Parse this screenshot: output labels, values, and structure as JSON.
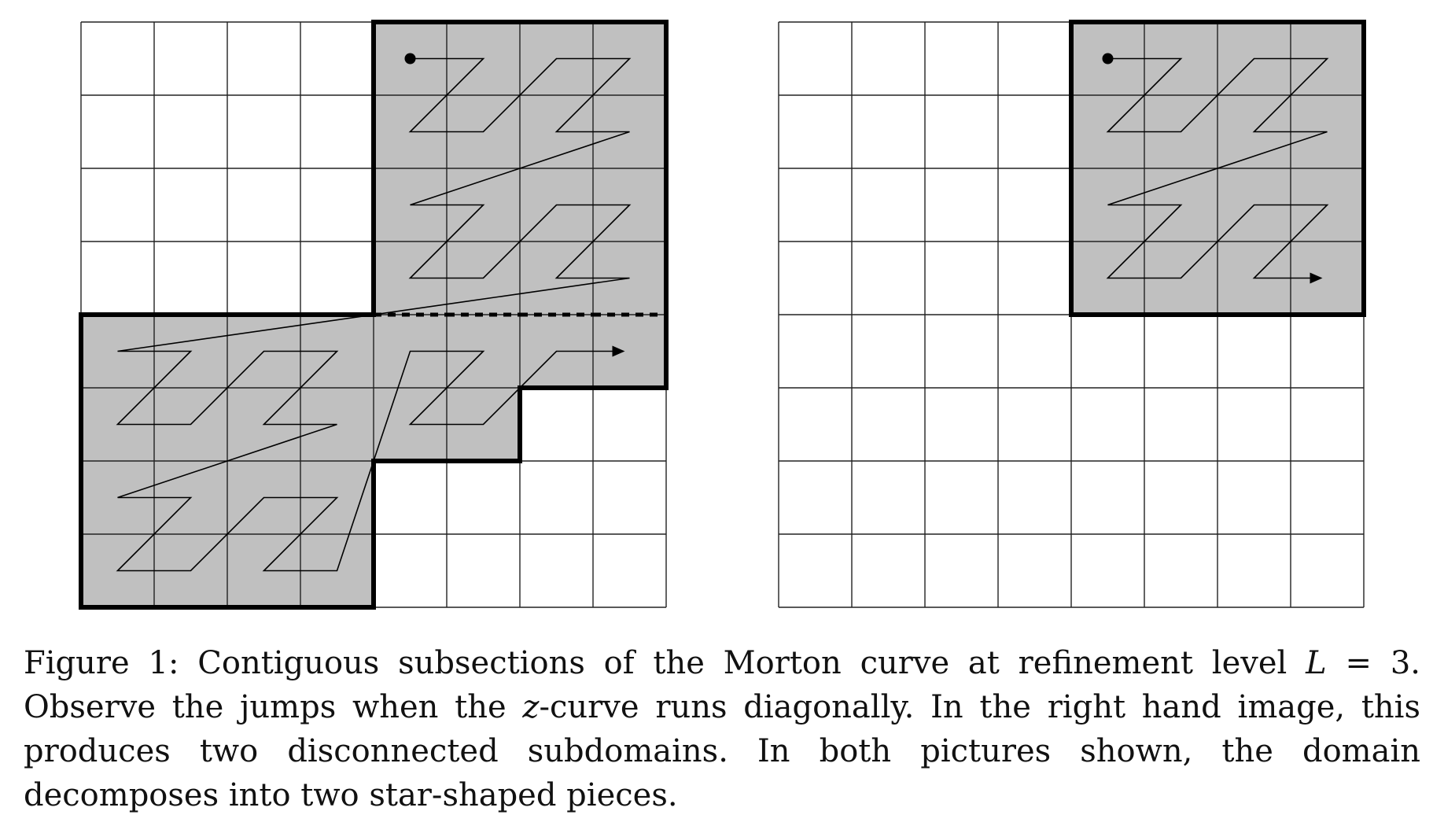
{
  "figure": {
    "grid_size": 8,
    "refinement_level": 3,
    "region_fill": "#c0c0c0",
    "grid_line_color": "#000000",
    "panels": [
      {
        "name": "left",
        "curve_start_cell": 16,
        "curve_end_cell": 53,
        "dashed_boundary": true
      },
      {
        "name": "right",
        "curve_start_cell": 16,
        "curve_end_cell": 31,
        "dashed_boundary": false
      }
    ]
  },
  "caption": {
    "label": "Figure 1:",
    "text_before_math": "Contiguous subsections of the Morton curve at refinement level",
    "math_var": "L",
    "math_rest": " = 3.",
    "text_after_math": "Observe the jumps when the",
    "zvar": "z",
    "text_after_z": "-curve runs diagonally. In the right hand image, this produces two disconnected subdomains. In both pictures shown, the domain decomposes into two star-shaped pieces."
  }
}
